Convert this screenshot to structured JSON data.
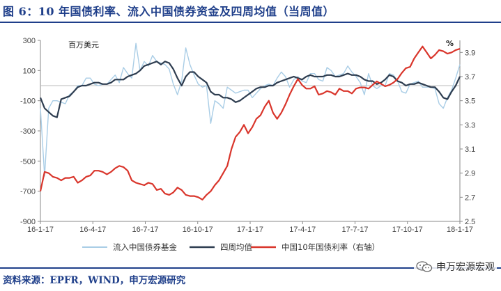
{
  "figure": {
    "title": "图 6：10 年国债利率、流入中国债券资金及四周均值（当周值）",
    "source": "资料来源：EPFR，WIND，申万宏源研究",
    "watermark_text": "申万宏源宏观"
  },
  "chart_data": {
    "type": "line",
    "left_axis": {
      "unit_label": "百万美元",
      "range": [
        -900,
        300
      ],
      "ticks": [
        "300",
        "100",
        "-100",
        "-300",
        "-500",
        "-700",
        "-900"
      ]
    },
    "right_axis": {
      "unit_label": "%",
      "range": [
        2.5,
        4.0
      ],
      "ticks": [
        "3.9",
        "3.7",
        "3.5",
        "3.3",
        "3.1",
        "2.9",
        "2.7",
        "2.5"
      ]
    },
    "x_tick_labels": [
      "16-1-17",
      "16-4-17",
      "16-7-17",
      "16-10-17",
      "17-1-17",
      "17-4-17",
      "17-7-17",
      "17-10-17",
      "18-1-17"
    ],
    "grid": false,
    "legend_position": "bottom",
    "series": [
      {
        "name": "流入中国债券基金",
        "axis": "left",
        "color": "#a9cde6",
        "values": [
          -150,
          -600,
          -150,
          -100,
          -100,
          -110,
          -120,
          -60,
          -40,
          0,
          0,
          50,
          50,
          10,
          0,
          10,
          10,
          40,
          70,
          20,
          120,
          80,
          50,
          280,
          100,
          160,
          130,
          200,
          160,
          150,
          140,
          110,
          10,
          -60,
          30,
          250,
          140,
          70,
          10,
          -10,
          0,
          -250,
          -100,
          -120,
          -150,
          -10,
          -30,
          -50,
          -40,
          -30,
          -30,
          -80,
          -50,
          -20,
          0,
          10,
          0,
          50,
          90,
          60,
          -10,
          40,
          60,
          30,
          20,
          80,
          80,
          40,
          30,
          120,
          100,
          60,
          70,
          80,
          130,
          90,
          60,
          20,
          -60,
          80,
          0,
          -20,
          0,
          0,
          80,
          70,
          30,
          -40,
          -50,
          10,
          20,
          30,
          -10,
          -10,
          -10,
          -20,
          -120,
          -150,
          -80,
          -30,
          50,
          140
        ]
      },
      {
        "name": "四周均值",
        "axis": "left",
        "color": "#2e3d50",
        "values": [
          -80,
          -150,
          -175,
          -200,
          -210,
          -90,
          -80,
          -70,
          -40,
          -10,
          0,
          0,
          10,
          20,
          20,
          10,
          10,
          20,
          40,
          40,
          40,
          60,
          70,
          80,
          100,
          130,
          140,
          150,
          160,
          140,
          160,
          150,
          110,
          50,
          0,
          60,
          90,
          90,
          60,
          40,
          20,
          -40,
          -60,
          -60,
          -80,
          -80,
          -90,
          -110,
          -100,
          -80,
          -60,
          -40,
          -20,
          -10,
          -10,
          0,
          0,
          20,
          30,
          40,
          50,
          60,
          50,
          40,
          60,
          70,
          60,
          60,
          60,
          70,
          70,
          60,
          60,
          70,
          80,
          70,
          70,
          60,
          40,
          30,
          30,
          10,
          20,
          40,
          70,
          60,
          30,
          20,
          0,
          10,
          10,
          20,
          10,
          0,
          -10,
          -10,
          -40,
          -80,
          -90,
          -40,
          0,
          60
        ]
      },
      {
        "name": "中国10年国债利率（右轴）",
        "axis": "right",
        "color": "#d9352b",
        "values": [
          2.75,
          2.91,
          2.9,
          2.87,
          2.86,
          2.84,
          2.86,
          2.86,
          2.87,
          2.82,
          2.84,
          2.87,
          2.88,
          2.92,
          2.92,
          2.91,
          2.89,
          2.91,
          2.94,
          2.96,
          2.95,
          2.92,
          2.84,
          2.82,
          2.81,
          2.8,
          2.82,
          2.81,
          2.76,
          2.77,
          2.73,
          2.72,
          2.74,
          2.78,
          2.76,
          2.72,
          2.71,
          2.71,
          2.7,
          2.68,
          2.72,
          2.75,
          2.8,
          2.84,
          2.9,
          2.96,
          3.1,
          3.2,
          3.24,
          3.3,
          3.23,
          3.28,
          3.35,
          3.38,
          3.45,
          3.5,
          3.4,
          3.35,
          3.4,
          3.47,
          3.55,
          3.62,
          3.68,
          3.63,
          3.6,
          3.6,
          3.62,
          3.55,
          3.56,
          3.58,
          3.57,
          3.55,
          3.6,
          3.58,
          3.58,
          3.56,
          3.6,
          3.61,
          3.61,
          3.6,
          3.63,
          3.66,
          3.64,
          3.62,
          3.63,
          3.65,
          3.68,
          3.73,
          3.77,
          3.78,
          3.85,
          3.9,
          3.95,
          3.9,
          3.85,
          3.88,
          3.92,
          3.91,
          3.89,
          3.9,
          3.92,
          3.93
        ]
      }
    ]
  }
}
